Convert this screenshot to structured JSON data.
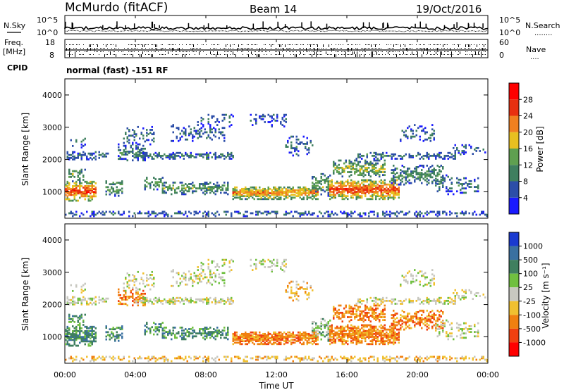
{
  "header": {
    "title": "McMurdo (fitACF)",
    "beam": "Beam 14",
    "date": "19/Oct/2016"
  },
  "top_panels": {
    "nsky_label": "N.Sky",
    "nsearch_label": "N.Search",
    "nsearch_dots": "........",
    "noise_ticks": [
      "10^5",
      "10^0"
    ],
    "freq_label": "Freq.",
    "freq_unit": "[MHz]",
    "freq_ticks": [
      "18",
      "8"
    ],
    "nave_label": "Nave",
    "nave_dots": "....",
    "nave_ticks": [
      "60",
      "0"
    ],
    "cpid_label": "CPID",
    "cpid_value": "normal (fast) -151 RF"
  },
  "colors": {
    "power_scale": [
      "#1a1aff",
      "#2c4ea8",
      "#3f7f5f",
      "#5fa050",
      "#e8c020",
      "#f08020",
      "#e83010",
      "#ff0000"
    ],
    "velocity_scale": [
      "#1a3ad0",
      "#3a70a0",
      "#3f7f5f",
      "#70c040",
      "#c8c8c0",
      "#f0c030",
      "#f08010",
      "#f04010",
      "#ff0000"
    ]
  },
  "chart_data": [
    {
      "type": "heatmap",
      "name": "power-panel",
      "xlabel": "",
      "ylabel": "Slant Range [km]",
      "xlim": [
        "00:00",
        "24:00"
      ],
      "ylim": [
        180,
        4500
      ],
      "yticks": [
        "1000",
        "2000",
        "3000",
        "4000"
      ],
      "colorbar": {
        "label": "Power [dB]",
        "range": [
          0,
          32
        ],
        "ticks": [
          "4",
          "8",
          "12",
          "16",
          "20",
          "24",
          "28"
        ]
      }
    },
    {
      "type": "heatmap",
      "name": "velocity-panel",
      "xlabel": "Time UT",
      "ylabel": "Slant Range [km]",
      "xlim": [
        "00:00",
        "24:00"
      ],
      "xticks": [
        "00:00",
        "04:00",
        "08:00",
        "12:00",
        "16:00",
        "20:00",
        "00:00"
      ],
      "ylim": [
        180,
        4500
      ],
      "yticks": [
        "1000",
        "2000",
        "3000",
        "4000"
      ],
      "colorbar": {
        "label": "Velocity [m s⁻¹]",
        "ticks": [
          "1000",
          "500",
          "100",
          "25",
          "-25",
          "-100",
          "-500",
          "-1000"
        ]
      }
    }
  ]
}
